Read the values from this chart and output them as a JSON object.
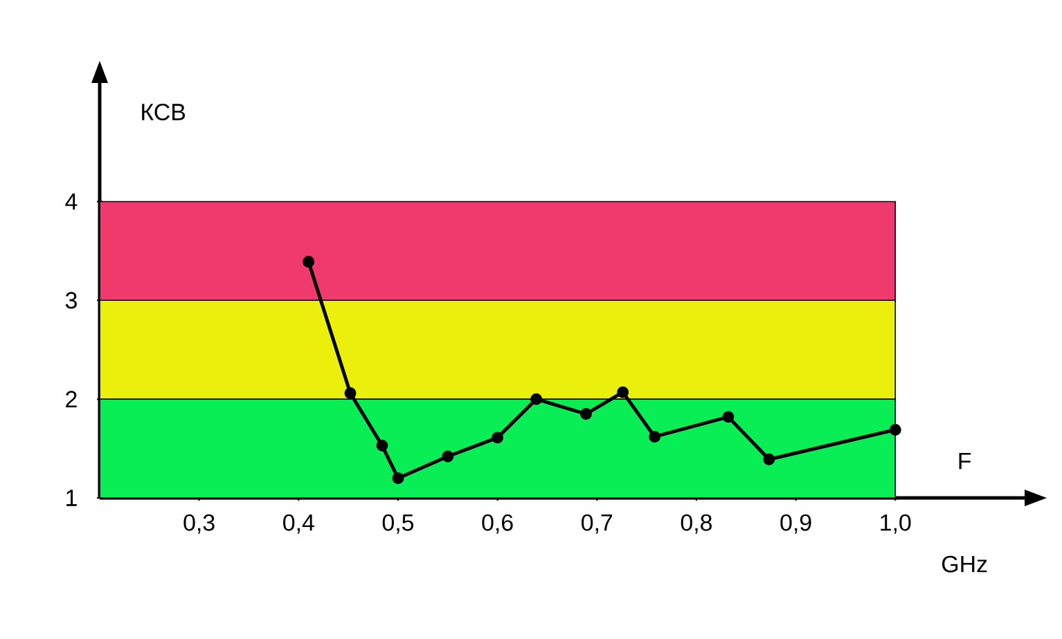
{
  "chart_data": {
    "type": "line",
    "xlabel": "F",
    "ylabel": "КСВ",
    "annotations": [
      "GHz"
    ],
    "x": [
      0.41,
      0.452,
      0.484,
      0.5,
      0.55,
      0.6,
      0.639,
      0.689,
      0.726,
      0.758,
      0.832,
      0.873,
      1.0
    ],
    "series": [
      {
        "color": "#000000",
        "values": [
          3.39,
          2.06,
          1.53,
          1.2,
          1.42,
          1.61,
          2.0,
          1.85,
          2.07,
          1.62,
          1.82,
          1.39,
          1.69
        ]
      }
    ],
    "xlim": [
      0.2,
      1.13
    ],
    "ylim": [
      1,
      5.2
    ],
    "xticks": [
      {
        "value": 0.3,
        "label": "0,3"
      },
      {
        "value": 0.4,
        "label": "0,4"
      },
      {
        "value": 0.5,
        "label": "0,5"
      },
      {
        "value": 0.6,
        "label": "0,6"
      },
      {
        "value": 0.7,
        "label": "0,7"
      },
      {
        "value": 0.8,
        "label": "0,8"
      },
      {
        "value": 0.9,
        "label": "0,9"
      },
      {
        "value": 1.0,
        "label": "1,0"
      }
    ],
    "yticks": [
      1,
      2,
      3,
      4
    ],
    "bands": [
      {
        "axis": "y",
        "from": 1,
        "to": 2,
        "color": "#0aee55"
      },
      {
        "axis": "y",
        "from": 2,
        "to": 3,
        "color": "#eaf00c"
      },
      {
        "axis": "y",
        "from": 3,
        "to": 4,
        "color": "#f03a6e"
      }
    ],
    "marker": "circle",
    "line_style": "solid"
  }
}
